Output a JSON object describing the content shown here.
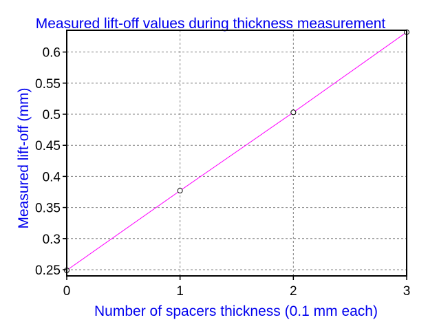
{
  "chart_data": {
    "type": "line",
    "title": "Measured lift-off values during thickness measurement",
    "xlabel": "Number of spacers thickness (0.1 mm each)",
    "ylabel": "Measured lift-off (mm)",
    "xlim": [
      0,
      3
    ],
    "ylim": [
      0.24,
      0.635
    ],
    "x_ticks": [
      0,
      1,
      2,
      3
    ],
    "x_tick_labels": [
      "0",
      "1",
      "2",
      "3"
    ],
    "y_ticks": [
      0.25,
      0.3,
      0.35,
      0.4,
      0.45,
      0.5,
      0.55,
      0.6
    ],
    "y_tick_labels": [
      "0.25",
      "0.3",
      "0.35",
      "0.4",
      "0.45",
      "0.5",
      "0.55",
      "0.6"
    ],
    "grid": true,
    "series": [
      {
        "x": [
          0,
          1,
          2,
          3
        ],
        "values": [
          0.249,
          0.377,
          0.503,
          0.632
        ],
        "color": "#ff00ff",
        "marker": "open-circle"
      }
    ]
  },
  "colors": {
    "title": "#0000ee",
    "axis_label": "#0000ee",
    "line": "#ff00ff"
  }
}
